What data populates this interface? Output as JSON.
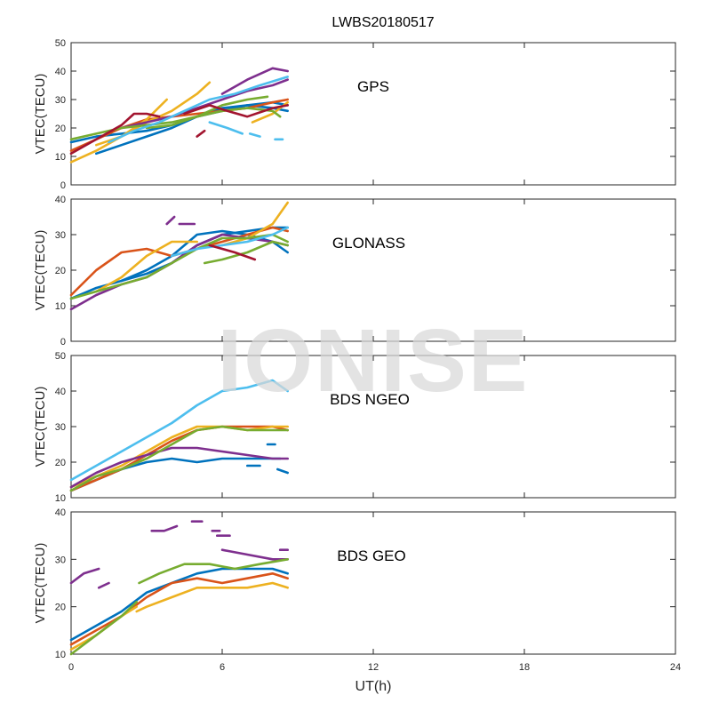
{
  "figure_title": "LWBS20180517",
  "watermark": "IONISE",
  "x_axis": {
    "label": "UT(h)",
    "ticks": [
      0,
      6,
      12,
      18,
      24
    ],
    "range": [
      0,
      24
    ]
  },
  "colors": [
    "#0072BD",
    "#D95319",
    "#EDB120",
    "#7E2F8E",
    "#77AC30",
    "#4DBEEE",
    "#A2142F"
  ],
  "chart_data": [
    {
      "type": "line",
      "annotation": "GPS",
      "ylabel": "VTEC(TECU)",
      "ylim": [
        0,
        50
      ],
      "yticks": [
        0,
        10,
        20,
        30,
        40,
        50
      ],
      "grid": false,
      "series": [
        {
          "color": "#0072BD",
          "x": [
            0,
            1,
            2,
            3,
            4,
            5,
            6,
            7,
            8,
            8.6
          ],
          "y": [
            15,
            17,
            18,
            19,
            21,
            24,
            26,
            28,
            27,
            26
          ]
        },
        {
          "color": "#0072BD",
          "x": [
            1,
            2,
            3,
            4,
            5,
            6,
            7,
            8,
            8.6
          ],
          "y": [
            11,
            14,
            17,
            20,
            24,
            27,
            28,
            29,
            28
          ]
        },
        {
          "color": "#D95319",
          "x": [
            0,
            1,
            2,
            3,
            4,
            5,
            6,
            7,
            8,
            8.6
          ],
          "y": [
            12,
            16,
            20,
            23,
            24,
            25,
            26,
            27,
            29,
            30
          ]
        },
        {
          "color": "#EDB120",
          "x": [
            0,
            1,
            2,
            3,
            4,
            5,
            5.5
          ],
          "y": [
            8,
            12,
            17,
            22,
            26,
            32,
            36
          ]
        },
        {
          "color": "#EDB120",
          "x": [
            1,
            2,
            3,
            3.8
          ],
          "y": [
            14,
            17,
            23,
            30
          ]
        },
        {
          "color": "#EDB120",
          "x": [
            7.2,
            8,
            8.6
          ],
          "y": [
            22,
            25,
            29
          ]
        },
        {
          "color": "#7E2F8E",
          "x": [
            6,
            7,
            8,
            8.6
          ],
          "y": [
            32,
            37,
            41,
            40
          ]
        },
        {
          "color": "#7E2F8E",
          "x": [
            2,
            3,
            4,
            5,
            6,
            7,
            8,
            8.6
          ],
          "y": [
            20,
            22,
            24,
            27,
            30,
            33,
            35,
            37
          ]
        },
        {
          "color": "#77AC30",
          "x": [
            0,
            1,
            2,
            3,
            4,
            5,
            6,
            7,
            8,
            8.3
          ],
          "y": [
            16,
            18,
            20,
            21,
            22,
            24,
            26,
            27,
            26,
            24
          ]
        },
        {
          "color": "#77AC30",
          "x": [
            3,
            4,
            5,
            6,
            7,
            7.8
          ],
          "y": [
            20,
            21,
            24,
            28,
            30,
            31
          ]
        },
        {
          "color": "#4DBEEE",
          "x": [
            1.5,
            2.5,
            3.5,
            4.5,
            5.5,
            6.5,
            7.5,
            8.6
          ],
          "y": [
            15,
            19,
            22,
            26,
            30,
            32,
            35,
            38
          ]
        },
        {
          "color": "#4DBEEE",
          "x": [
            5.5,
            6.2,
            6.8
          ],
          "y": [
            22,
            20,
            18
          ]
        },
        {
          "color": "#4DBEEE",
          "x": [
            7.1,
            7.5
          ],
          "y": [
            18,
            17
          ]
        },
        {
          "color": "#4DBEEE",
          "x": [
            8.1,
            8.4
          ],
          "y": [
            16,
            16
          ]
        },
        {
          "color": "#A2142F",
          "x": [
            0,
            1,
            2,
            2.5,
            3,
            3.5
          ],
          "y": [
            11,
            16,
            21,
            25,
            25,
            24
          ]
        },
        {
          "color": "#A2142F",
          "x": [
            4.5,
            5.5,
            6.2,
            7,
            8,
            8.6
          ],
          "y": [
            25,
            28,
            26,
            24,
            27,
            28
          ]
        },
        {
          "color": "#A2142F",
          "x": [
            5,
            5.3
          ],
          "y": [
            17,
            19
          ]
        }
      ]
    },
    {
      "type": "line",
      "annotation": "GLONASS",
      "ylabel": "VTEC(TECU)",
      "ylim": [
        0,
        40
      ],
      "yticks": [
        0,
        10,
        20,
        30,
        40
      ],
      "grid": false,
      "series": [
        {
          "color": "#0072BD",
          "x": [
            0,
            1,
            2,
            3,
            4,
            5,
            6,
            7,
            8,
            8.6
          ],
          "y": [
            12,
            15,
            17,
            20,
            24,
            30,
            31,
            30,
            28,
            25
          ]
        },
        {
          "color": "#0072BD",
          "x": [
            2,
            3,
            4,
            5,
            6,
            7,
            8,
            8.6
          ],
          "y": [
            17,
            19,
            22,
            27,
            30,
            31,
            32,
            32
          ]
        },
        {
          "color": "#D95319",
          "x": [
            0,
            1,
            2,
            3,
            4,
            5,
            6,
            7,
            8,
            8.6
          ],
          "y": [
            13,
            20,
            25,
            26,
            24,
            26,
            28,
            30,
            32,
            31
          ]
        },
        {
          "color": "#EDB120",
          "x": [
            1,
            2,
            3,
            4,
            5
          ],
          "y": [
            14,
            18,
            24,
            28,
            28
          ]
        },
        {
          "color": "#EDB120",
          "x": [
            6,
            7,
            8,
            8.6
          ],
          "y": [
            27,
            29,
            33,
            39
          ]
        },
        {
          "color": "#7E2F8E",
          "x": [
            0,
            1,
            2,
            3,
            4,
            5,
            6,
            7,
            8,
            8.6
          ],
          "y": [
            9,
            13,
            16,
            18,
            22,
            27,
            30,
            29,
            28,
            27
          ]
        },
        {
          "color": "#7E2F8E",
          "x": [
            3.8,
            4.1
          ],
          "y": [
            33,
            35
          ]
        },
        {
          "color": "#7E2F8E",
          "x": [
            4.3,
            4.9
          ],
          "y": [
            33,
            33
          ]
        },
        {
          "color": "#77AC30",
          "x": [
            0,
            1,
            2,
            3,
            4,
            5,
            6,
            7,
            8,
            8.6
          ],
          "y": [
            12,
            14,
            16,
            18,
            22,
            26,
            29,
            29,
            30,
            28
          ]
        },
        {
          "color": "#77AC30",
          "x": [
            5.3,
            6,
            7,
            8,
            8.6
          ],
          "y": [
            22,
            23,
            25,
            28,
            27
          ]
        },
        {
          "color": "#4DBEEE",
          "x": [
            4,
            5,
            6,
            7,
            8,
            8.6
          ],
          "y": [
            24,
            26,
            27,
            28,
            30,
            32
          ]
        },
        {
          "color": "#A2142F",
          "x": [
            5.5,
            6.5,
            7.3
          ],
          "y": [
            27,
            25,
            23
          ]
        }
      ]
    },
    {
      "type": "line",
      "annotation": "BDS NGEO",
      "ylabel": "VTEC(TECU)",
      "ylim": [
        10,
        50
      ],
      "yticks": [
        10,
        20,
        30,
        40,
        50
      ],
      "grid": false,
      "series": [
        {
          "color": "#0072BD",
          "x": [
            0,
            1,
            2,
            3,
            4,
            5,
            6,
            7,
            8,
            8.3
          ],
          "y": [
            12,
            15,
            18,
            20,
            21,
            20,
            21,
            21,
            21,
            21
          ]
        },
        {
          "color": "#0072BD",
          "x": [
            7,
            7.5
          ],
          "y": [
            19,
            19
          ]
        },
        {
          "color": "#0072BD",
          "x": [
            7.8,
            8.1
          ],
          "y": [
            25,
            25
          ]
        },
        {
          "color": "#0072BD",
          "x": [
            8.2,
            8.6
          ],
          "y": [
            18,
            17
          ]
        },
        {
          "color": "#D95319",
          "x": [
            0,
            1,
            2,
            3,
            4,
            5,
            6,
            7,
            8,
            8.6
          ],
          "y": [
            12,
            15,
            18,
            22,
            26,
            29,
            30,
            30,
            30,
            29
          ]
        },
        {
          "color": "#EDB120",
          "x": [
            0,
            1,
            2,
            3,
            4,
            5,
            6,
            7,
            8,
            8.6
          ],
          "y": [
            13,
            16,
            19,
            23,
            27,
            30,
            30,
            29,
            30,
            30
          ]
        },
        {
          "color": "#7E2F8E",
          "x": [
            0,
            1,
            2,
            3,
            4,
            5,
            6,
            7,
            8,
            8.6
          ],
          "y": [
            13,
            17,
            20,
            22,
            24,
            24,
            23,
            22,
            21,
            21
          ]
        },
        {
          "color": "#77AC30",
          "x": [
            0,
            1,
            2,
            3,
            4,
            5,
            6,
            7,
            8,
            8.6
          ],
          "y": [
            12,
            16,
            18,
            21,
            25,
            29,
            30,
            29,
            29,
            29
          ]
        },
        {
          "color": "#4DBEEE",
          "x": [
            0,
            1,
            2,
            3,
            4,
            5,
            6,
            7,
            8,
            8.6
          ],
          "y": [
            15,
            19,
            23,
            27,
            31,
            36,
            40,
            41,
            43,
            40
          ]
        }
      ]
    },
    {
      "type": "line",
      "annotation": "BDS GEO",
      "ylabel": "VTEC(TECU)",
      "ylim": [
        10,
        40
      ],
      "yticks": [
        10,
        20,
        30,
        40
      ],
      "grid": false,
      "series": [
        {
          "color": "#0072BD",
          "x": [
            0,
            1,
            2,
            3,
            4,
            5,
            6,
            7,
            8,
            8.6
          ],
          "y": [
            13,
            16,
            19,
            23,
            25,
            27,
            28,
            28,
            28,
            27
          ]
        },
        {
          "color": "#D95319",
          "x": [
            0,
            1,
            2,
            3,
            4,
            5,
            6,
            7,
            8,
            8.6
          ],
          "y": [
            12,
            15,
            18,
            22,
            25,
            26,
            25,
            26,
            27,
            26
          ]
        },
        {
          "color": "#EDB120",
          "x": [
            0,
            1,
            2,
            2.6
          ],
          "y": [
            11,
            14,
            18,
            20
          ]
        },
        {
          "color": "#EDB120",
          "x": [
            2.6,
            3,
            4,
            5,
            6,
            7,
            8,
            8.6
          ],
          "y": [
            19,
            20,
            22,
            24,
            24,
            24,
            25,
            24
          ]
        },
        {
          "color": "#7E2F8E",
          "x": [
            0,
            0.5,
            1.1
          ],
          "y": [
            25,
            27,
            28
          ]
        },
        {
          "color": "#7E2F8E",
          "x": [
            1.1,
            1.5
          ],
          "y": [
            24,
            25
          ]
        },
        {
          "color": "#7E2F8E",
          "x": [
            3.2,
            3.7,
            4.2
          ],
          "y": [
            36,
            36,
            37
          ]
        },
        {
          "color": "#7E2F8E",
          "x": [
            4.8,
            5.2
          ],
          "y": [
            38,
            38
          ]
        },
        {
          "color": "#7E2F8E",
          "x": [
            5.6,
            5.9
          ],
          "y": [
            36,
            36
          ]
        },
        {
          "color": "#7E2F8E",
          "x": [
            5.8,
            6.3
          ],
          "y": [
            35,
            35
          ]
        },
        {
          "color": "#7E2F8E",
          "x": [
            6,
            7,
            8,
            8.6
          ],
          "y": [
            32,
            31,
            30,
            30
          ]
        },
        {
          "color": "#7E2F8E",
          "x": [
            8.3,
            8.6
          ],
          "y": [
            32,
            32
          ]
        },
        {
          "color": "#77AC30",
          "x": [
            0,
            1,
            2,
            2.6
          ],
          "y": [
            10,
            14,
            18,
            21
          ]
        },
        {
          "color": "#77AC30",
          "x": [
            2.7,
            3.5,
            4.5,
            5.5,
            6.5,
            7.5,
            8.6
          ],
          "y": [
            25,
            27,
            29,
            29,
            28,
            29,
            30
          ]
        }
      ]
    }
  ]
}
